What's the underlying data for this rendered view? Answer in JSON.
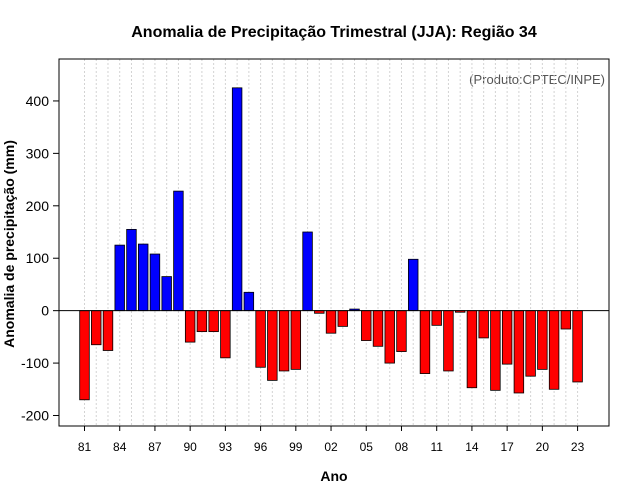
{
  "chart_data": {
    "type": "bar",
    "title": "Anomalia de Precipitação Trimestral (JJA): Região 34",
    "xlabel": "Ano",
    "ylabel": "Anomalia de precipitação (mm)",
    "credit": "(Produto:CPTEC/INPE)",
    "ylim": [
      -220,
      480
    ],
    "yticks": [
      -200,
      -100,
      0,
      100,
      200,
      300,
      400
    ],
    "categories": [
      "81",
      "82",
      "83",
      "84",
      "85",
      "86",
      "87",
      "88",
      "89",
      "90",
      "91",
      "92",
      "93",
      "94",
      "95",
      "96",
      "97",
      "98",
      "99",
      "00",
      "01",
      "02",
      "03",
      "04",
      "05",
      "06",
      "07",
      "08",
      "09",
      "10",
      "11",
      "12",
      "13",
      "14",
      "15",
      "16",
      "17",
      "18",
      "19",
      "20",
      "21",
      "22",
      "23"
    ],
    "xtick_labels": [
      "81",
      "84",
      "87",
      "90",
      "93",
      "96",
      "99",
      "02",
      "05",
      "08",
      "11",
      "14",
      "17",
      "20",
      "23"
    ],
    "values": [
      -170,
      -65,
      -76,
      125,
      155,
      127,
      108,
      65,
      228,
      -60,
      -40,
      -40,
      -90,
      425,
      35,
      -108,
      -133,
      -115,
      -112,
      150,
      -5,
      -43,
      -30,
      3,
      -57,
      -68,
      -100,
      -78,
      98,
      -120,
      -28,
      -115,
      -3,
      -147,
      -52,
      -152,
      -102,
      -157,
      -125,
      -112,
      -150,
      -35,
      -136
    ],
    "colors": {
      "positive": "#0000ff",
      "negative": "#ff0000",
      "outline": "#000000",
      "grid": "#d3d3d3"
    }
  }
}
